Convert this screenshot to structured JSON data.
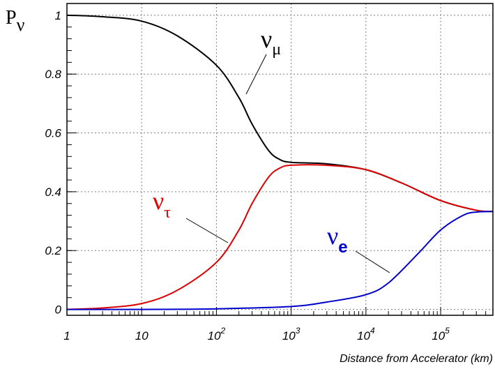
{
  "chart_data": {
    "type": "line",
    "x_scale": "log",
    "xlabel": "Distance from Accelerator (km)",
    "ylabel": "P",
    "ylabel_sub": "ν",
    "xlim": [
      1,
      500000
    ],
    "ylim": [
      -0.02,
      1.04
    ],
    "grid": true,
    "x_ticks": [
      {
        "value": 1,
        "base": "1",
        "exp": ""
      },
      {
        "value": 10,
        "base": "10",
        "exp": ""
      },
      {
        "value": 100,
        "base": "10",
        "exp": "2"
      },
      {
        "value": 1000,
        "base": "10",
        "exp": "3"
      },
      {
        "value": 10000,
        "base": "10",
        "exp": "4"
      },
      {
        "value": 100000,
        "base": "10",
        "exp": "5"
      }
    ],
    "y_ticks": [
      {
        "value": 0,
        "label": "0"
      },
      {
        "value": 0.2,
        "label": "0.2"
      },
      {
        "value": 0.4,
        "label": "0.4"
      },
      {
        "value": 0.6,
        "label": "0.6"
      },
      {
        "value": 0.8,
        "label": "0.8"
      },
      {
        "value": 1,
        "label": "1"
      }
    ],
    "series": [
      {
        "name": "ν_μ",
        "color": "#000000",
        "x": [
          1,
          3,
          10,
          30,
          100,
          200,
          300,
          500,
          700,
          1000,
          3000,
          10000,
          30000,
          100000,
          300000,
          500000
        ],
        "y": [
          1.0,
          0.995,
          0.98,
          0.93,
          0.83,
          0.72,
          0.63,
          0.54,
          0.51,
          0.5,
          0.495,
          0.475,
          0.43,
          0.37,
          0.337,
          0.333
        ]
      },
      {
        "name": "ν_τ",
        "color": "#dd0000",
        "x": [
          1,
          3,
          10,
          30,
          100,
          200,
          300,
          500,
          700,
          1000,
          3000,
          10000,
          30000,
          100000,
          300000,
          500000
        ],
        "y": [
          0.0,
          0.005,
          0.02,
          0.065,
          0.16,
          0.27,
          0.36,
          0.45,
          0.48,
          0.49,
          0.49,
          0.475,
          0.43,
          0.37,
          0.337,
          0.333
        ]
      },
      {
        "name": "ν_e",
        "color": "#0000cc",
        "x": [
          1,
          10,
          100,
          1000,
          3000,
          10000,
          20000,
          50000,
          100000,
          200000,
          300000,
          500000
        ],
        "y": [
          0.0,
          0.0,
          0.002,
          0.01,
          0.025,
          0.05,
          0.09,
          0.19,
          0.27,
          0.32,
          0.331,
          0.333
        ]
      }
    ],
    "labels": [
      {
        "greek": "ν",
        "sub": "μ",
        "color": "#000000"
      },
      {
        "greek": "ν",
        "sub": "τ",
        "color": "#dd0000"
      },
      {
        "greek": "ν",
        "sub": "e",
        "color": "#0000cc"
      }
    ]
  }
}
